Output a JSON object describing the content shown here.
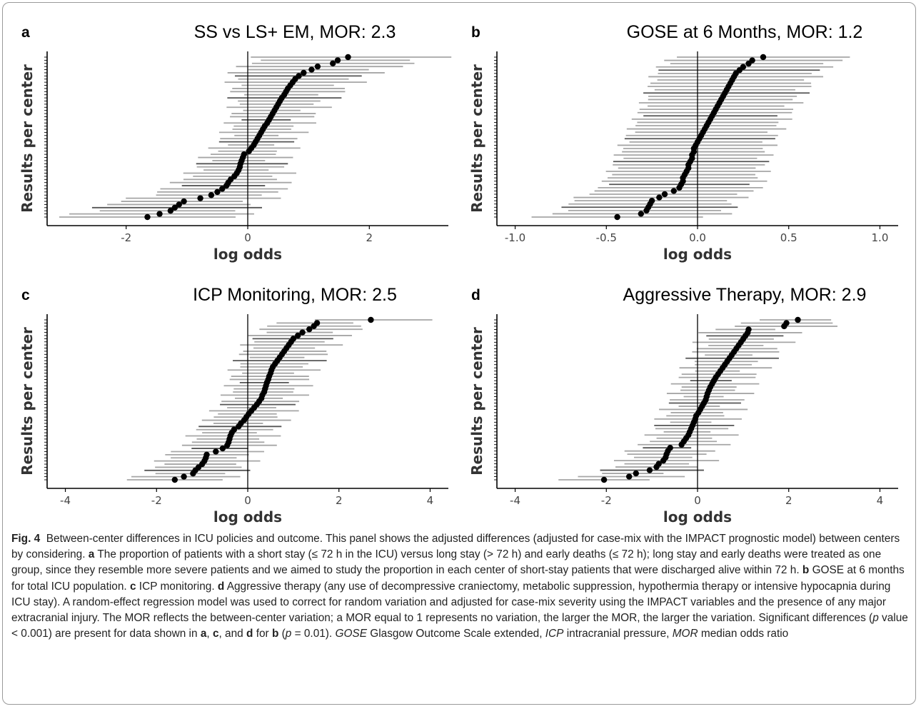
{
  "colors": {
    "ci_line": "#a6a6a6",
    "ci_dark": "#555555",
    "point": "#000000",
    "axis": "#000000"
  },
  "chart_data": [
    {
      "id": "a",
      "panel_letter": "a",
      "type": "scatter",
      "title": "SS vs LS+ EM, MOR: 2.3",
      "xlabel": "log odds",
      "ylabel": "Results per center",
      "xlim": [
        -3.3,
        3.3
      ],
      "xticks": [
        -2,
        0,
        2
      ],
      "tick_labels": [
        "-2",
        "0",
        "2"
      ],
      "ref_line": 0,
      "points": [
        -1.65,
        -1.45,
        -1.27,
        -1.2,
        -1.13,
        -1.05,
        -0.78,
        -0.6,
        -0.5,
        -0.42,
        -0.35,
        -0.32,
        -0.28,
        -0.22,
        -0.18,
        -0.15,
        -0.13,
        -0.12,
        -0.1,
        -0.08,
        -0.06,
        0.02,
        0.06,
        0.1,
        0.13,
        0.16,
        0.19,
        0.22,
        0.25,
        0.28,
        0.32,
        0.35,
        0.38,
        0.41,
        0.44,
        0.47,
        0.5,
        0.53,
        0.56,
        0.6,
        0.63,
        0.66,
        0.7,
        0.74,
        0.78,
        0.84,
        0.92,
        1.05,
        1.15,
        1.4,
        1.48,
        1.65
      ],
      "ci_half_width": [
        0.95,
        0.55,
        1.45
      ],
      "ci_wobble": 0.25
    },
    {
      "id": "b",
      "panel_letter": "b",
      "type": "scatter",
      "title": "GOSE at 6 Months, MOR: 1.2",
      "xlabel": "log odds",
      "ylabel": "Results per center",
      "xlim": [
        -1.1,
        1.1
      ],
      "xticks": [
        -1.0,
        -0.5,
        0.0,
        0.5,
        1.0
      ],
      "tick_labels": [
        "-1.0",
        "-0.5",
        "0.0",
        "0.5",
        "1.0"
      ],
      "ref_line": 0,
      "points": [
        -0.44,
        -0.31,
        -0.28,
        -0.27,
        -0.26,
        -0.25,
        -0.21,
        -0.18,
        -0.13,
        -0.1,
        -0.09,
        -0.08,
        -0.08,
        -0.07,
        -0.06,
        -0.05,
        -0.05,
        -0.04,
        -0.03,
        -0.03,
        -0.02,
        -0.02,
        -0.01,
        0.0,
        0.01,
        0.02,
        0.03,
        0.04,
        0.05,
        0.06,
        0.07,
        0.08,
        0.09,
        0.1,
        0.11,
        0.12,
        0.13,
        0.14,
        0.15,
        0.16,
        0.17,
        0.18,
        0.19,
        0.2,
        0.21,
        0.23,
        0.25,
        0.28,
        0.3,
        0.36
      ],
      "ci_half_width": [
        0.43,
        0.4,
        0.47
      ],
      "ci_wobble": 0.05
    },
    {
      "id": "c",
      "panel_letter": "c",
      "type": "scatter",
      "title": "ICP Monitoring, MOR: 2.5",
      "xlabel": "log odds",
      "ylabel": "Results per center",
      "xlim": [
        -4.4,
        4.4
      ],
      "xticks": [
        -4,
        -2,
        0,
        2,
        4
      ],
      "tick_labels": [
        "-4",
        "-2",
        "0",
        "2",
        "4"
      ],
      "ref_line": 0,
      "points": [
        -1.6,
        -1.4,
        -1.2,
        -1.15,
        -1.08,
        -1.0,
        -0.95,
        -0.92,
        -0.9,
        -0.7,
        -0.55,
        -0.45,
        -0.42,
        -0.4,
        -0.38,
        -0.35,
        -0.3,
        -0.2,
        -0.15,
        -0.08,
        -0.03,
        0.02,
        0.08,
        0.14,
        0.2,
        0.25,
        0.3,
        0.32,
        0.36,
        0.38,
        0.4,
        0.42,
        0.45,
        0.47,
        0.5,
        0.52,
        0.55,
        0.6,
        0.65,
        0.7,
        0.75,
        0.8,
        0.85,
        0.9,
        0.95,
        1.0,
        1.1,
        1.2,
        1.35,
        1.45,
        1.52,
        2.7
      ],
      "ci_half_width": [
        1.1,
        0.75,
        1.05
      ],
      "ci_wobble": 0.3
    },
    {
      "id": "d",
      "panel_letter": "d",
      "type": "scatter",
      "title": "Aggressive Therapy, MOR: 2.9",
      "xlabel": "log odds",
      "ylabel": "Results per center",
      "xlim": [
        -4.4,
        4.4
      ],
      "xticks": [
        -4,
        -2,
        0,
        2,
        4
      ],
      "tick_labels": [
        "-4",
        "-2",
        "0",
        "2",
        "4"
      ],
      "ref_line": 0,
      "points": [
        -2.05,
        -1.5,
        -1.35,
        -1.05,
        -0.9,
        -0.85,
        -0.75,
        -0.7,
        -0.68,
        -0.65,
        -0.6,
        -0.35,
        -0.3,
        -0.25,
        -0.2,
        -0.17,
        -0.14,
        -0.11,
        -0.08,
        -0.05,
        -0.03,
        0.02,
        0.06,
        0.1,
        0.14,
        0.18,
        0.2,
        0.22,
        0.25,
        0.28,
        0.32,
        0.36,
        0.4,
        0.45,
        0.5,
        0.55,
        0.6,
        0.65,
        0.7,
        0.75,
        0.8,
        0.85,
        0.9,
        0.95,
        1.0,
        1.05,
        1.1,
        1.12,
        1.9,
        1.95,
        2.2
      ],
      "ci_half_width": [
        1.05,
        0.7,
        1.0
      ],
      "ci_wobble": 0.35
    }
  ],
  "caption": {
    "fig_label": "Fig. 4",
    "t1": "Between-center differences in ICU policies and outcome. This panel shows the adjusted differences (adjusted for case-mix with the IMPACT prognostic model) between centers by considering. ",
    "a": "a",
    "t2": " The proportion of patients with a short stay (≤ 72 h in the ICU) versus long stay (> 72 h) and early deaths (≤ 72 h); long stay and early deaths were treated as one group, since they resemble more severe patients and we aimed to study the proportion in each center of short-stay patients that were discharged alive within 72 h. ",
    "b": "b",
    "t3": " GOSE at 6 months for total ICU population. ",
    "c": "c",
    "t4": " ICP monitoring. ",
    "d": "d",
    "t5": " Aggressive therapy (any use of decompressive craniectomy, metabolic suppression, hypothermia therapy or intensive hypocapnia during ICU stay). A random-effect regression model was used to correct for random variation and adjusted for case-mix severity using the IMPACT variables and the presence of any major extracranial injury. The MOR reflects the between-center variation; a MOR equal to 1 represents no variation, the larger the MOR, the larger the variation. Significant differences (",
    "p1": "p",
    "t6": " value < 0.001) are present for data shown in ",
    "a2": "a",
    "t7": ", ",
    "c2": "c",
    "t8": ", and ",
    "d2": "d",
    "t9": " for ",
    "b2": "b",
    "t10": " (",
    "p2": "p",
    "t11": " = 0.01). ",
    "gose": "GOSE",
    "t12": " Glasgow Outcome Scale extended, ",
    "icp": "ICP",
    "t13": " intracranial pressure, ",
    "mor": "MOR",
    "t14": " median odds ratio"
  }
}
